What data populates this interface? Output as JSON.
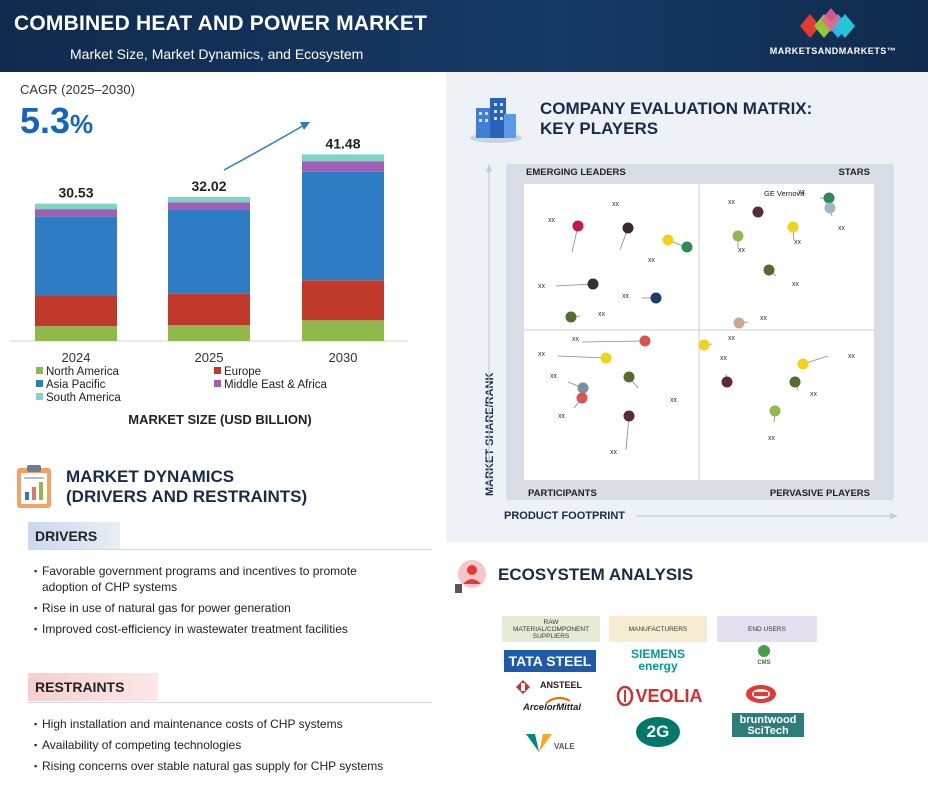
{
  "header": {
    "title": "COMBINED HEAT AND POWER MARKET",
    "subtitle": "Market Size, Market Dynamics, and Ecosystem",
    "brand": "MARKETSANDMARKETS™"
  },
  "cagr": {
    "label": "CAGR (2025–2030)",
    "value": "5.3",
    "unit": "%"
  },
  "chart_data": {
    "type": "bar",
    "stacked": true,
    "title": "MARKET SIZE (USD BILLION)",
    "categories": [
      "2024",
      "2025",
      "2030"
    ],
    "totals": [
      30.53,
      32.02,
      41.48
    ],
    "total_labels": [
      "30.53",
      "32.02",
      "41.48"
    ],
    "series": [
      {
        "name": "North America",
        "color": "#8fb94b",
        "values": [
          3.3,
          3.5,
          4.6
        ]
      },
      {
        "name": "Europe",
        "color": "#c0392b",
        "values": [
          6.7,
          7.0,
          8.9
        ]
      },
      {
        "name": "Asia Pacific",
        "color": "#2e7cc4",
        "values": [
          17.7,
          18.6,
          24.1
        ]
      },
      {
        "name": "Middle East & Africa",
        "color": "#a05fb5",
        "values": [
          1.6,
          1.7,
          2.3
        ]
      },
      {
        "name": "South America",
        "color": "#7fd4c4",
        "values": [
          1.23,
          1.22,
          1.58
        ]
      }
    ],
    "legend_position": "bottom"
  },
  "dynamics": {
    "title_line1": "MARKET DYNAMICS",
    "title_line2": "(DRIVERS AND RESTRAINTS)",
    "drivers_label": "DRIVERS",
    "drivers": [
      "Favorable government programs and incentives to promote adoption of CHP systems",
      "Rise in use of natural gas for power generation",
      "Improved cost-efficiency in wastewater treatment facilities"
    ],
    "restraints_label": "RESTRAINTS",
    "restraints": [
      "High installation and maintenance costs of CHP systems",
      "Availability of competing technologies",
      "Rising concerns over stable natural gas supply for CHP systems"
    ]
  },
  "matrix": {
    "title_line1": "COMPANY EVALUATION MATRIX:",
    "title_line2": "KEY PLAYERS",
    "quadrants": {
      "top_left": "EMERGING LEADERS",
      "top_right": "STARS",
      "bottom_left": "PARTICIPANTS",
      "bottom_right": "PERVASIVE PLAYERS"
    },
    "y_axis": "MARKET SHARE/RANK",
    "x_axis": "PRODUCT FOOTPRINT",
    "named_player": "GE Vernova",
    "placeholder": "xx"
  },
  "ecosystem": {
    "title": "ECOSYSTEM ANALYSIS",
    "columns": [
      {
        "header": "RAW MATERIAL/COMPONENT SUPPLIERS",
        "color": "#e5ecd6",
        "logos": [
          "TATA STEEL",
          "ANSTEEL",
          "ArcelorMittal",
          "VALE"
        ]
      },
      {
        "header": "MANUFACTURERS",
        "color": "#f6ecd2",
        "logos": [
          "SIEMENS energy",
          "VEOLIA",
          "2G"
        ]
      },
      {
        "header": "END USERS",
        "color": "#e6dff0",
        "logos": [
          "CMS",
          "",
          "bruntwood SciTech"
        ]
      }
    ]
  }
}
